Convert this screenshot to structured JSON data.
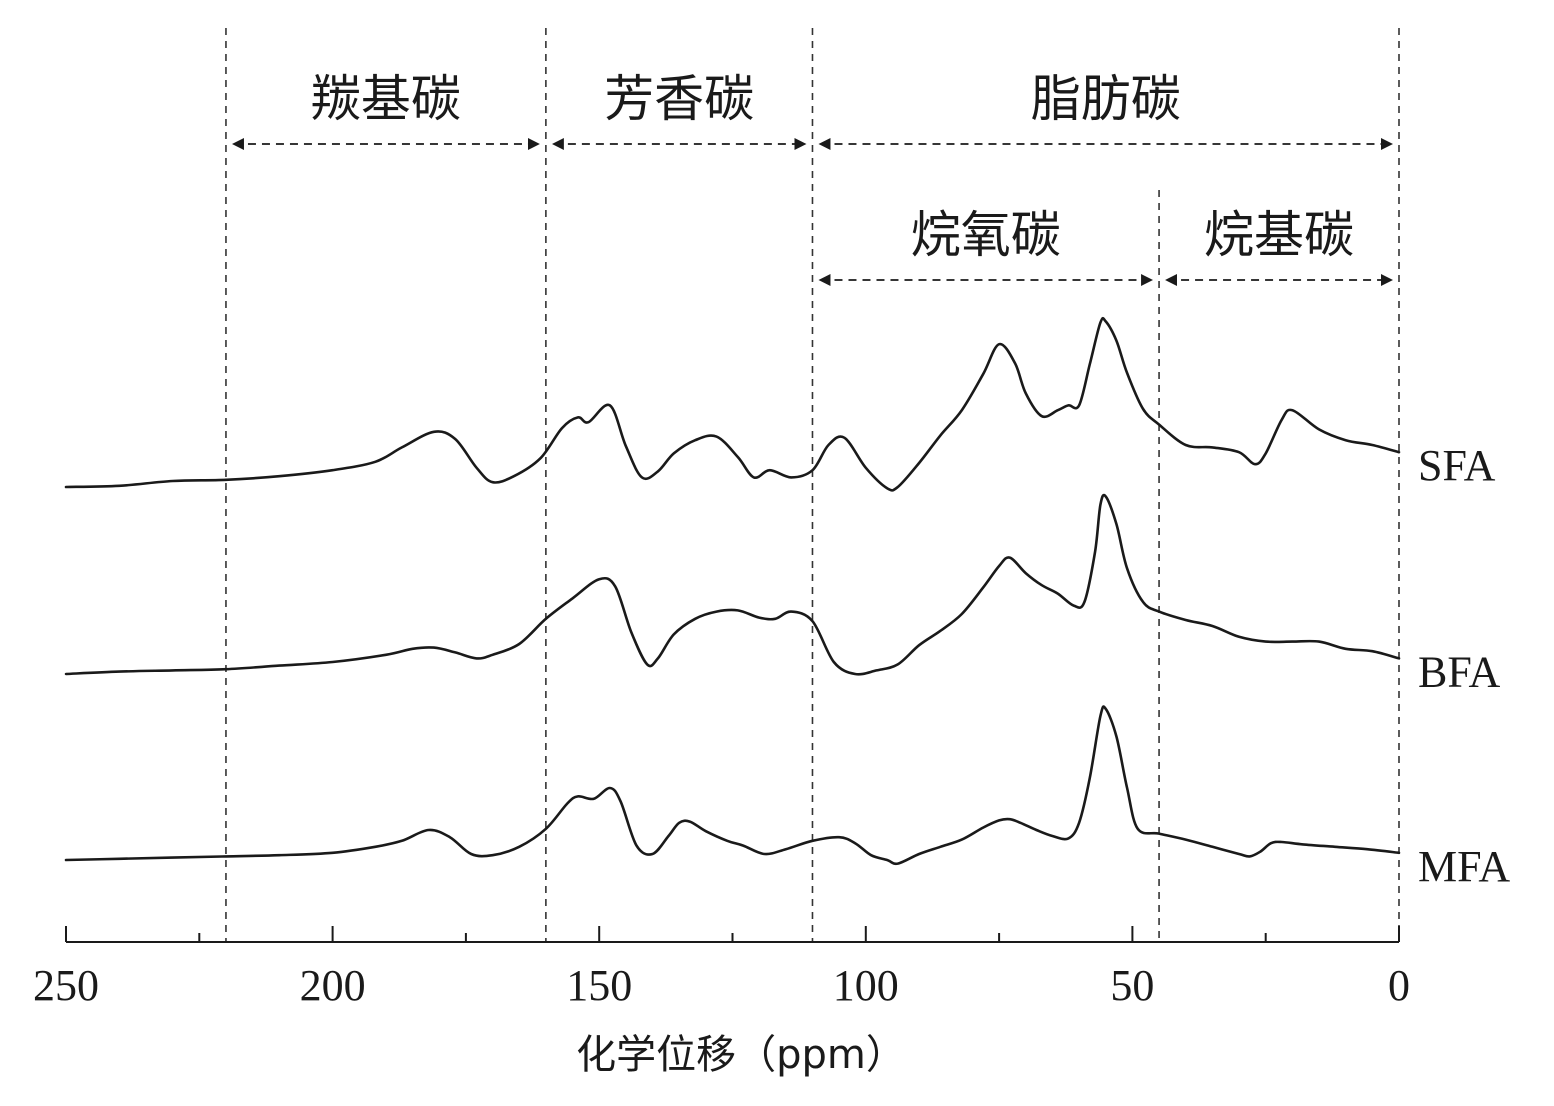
{
  "chart_data": {
    "type": "line",
    "xlabel": "化学位移（ppm）",
    "ylabel": "",
    "xlim": [
      250,
      0
    ],
    "x_reversed": true,
    "x_ticks": [
      250,
      200,
      150,
      100,
      50,
      0
    ],
    "x_tick_labels": [
      "250",
      "200",
      "150",
      "100",
      "50",
      "0"
    ],
    "grid": false,
    "legend": "series labels at right end of each trace",
    "region_boundaries": [
      220,
      160,
      110,
      45,
      0
    ],
    "regions": [
      {
        "label": "羰基碳",
        "from": 220,
        "to": 160,
        "row": 1
      },
      {
        "label": "芳香碳",
        "from": 160,
        "to": 110,
        "row": 1
      },
      {
        "label": "脂肪碳",
        "from": 110,
        "to": 0,
        "row": 1
      },
      {
        "label": "烷氧碳",
        "from": 110,
        "to": 45,
        "row": 2
      },
      {
        "label": "烷基碳",
        "from": 45,
        "to": 0,
        "row": 2
      }
    ],
    "series": [
      {
        "name": "SFA",
        "offset": 2,
        "x": [
          250,
          240,
          230,
          220,
          210,
          200,
          192,
          187,
          181,
          177,
          173,
          170,
          166,
          161,
          157,
          154,
          152,
          148,
          145,
          142,
          139,
          136,
          132,
          128,
          124,
          121,
          118,
          114,
          110,
          107,
          104,
          100,
          96,
          94,
          90,
          86,
          82,
          78,
          75,
          72,
          70,
          67,
          64,
          62,
          60,
          58,
          56,
          55,
          53,
          51,
          48,
          45,
          40,
          35,
          30,
          27,
          25,
          22,
          20,
          15,
          10,
          5,
          0
        ],
        "y": [
          0.0,
          0.01,
          0.05,
          0.06,
          0.09,
          0.14,
          0.21,
          0.33,
          0.46,
          0.4,
          0.16,
          0.04,
          0.09,
          0.24,
          0.49,
          0.58,
          0.54,
          0.68,
          0.34,
          0.08,
          0.13,
          0.28,
          0.39,
          0.42,
          0.25,
          0.08,
          0.14,
          0.08,
          0.14,
          0.35,
          0.41,
          0.16,
          -0.01,
          0.0,
          0.2,
          0.43,
          0.64,
          0.94,
          1.19,
          1.03,
          0.78,
          0.59,
          0.64,
          0.68,
          0.68,
          1.02,
          1.37,
          1.38,
          1.22,
          0.95,
          0.65,
          0.52,
          0.35,
          0.33,
          0.29,
          0.19,
          0.28,
          0.56,
          0.64,
          0.48,
          0.39,
          0.35,
          0.29
        ]
      },
      {
        "name": "BFA",
        "offset": 1,
        "x": [
          250,
          240,
          230,
          220,
          210,
          200,
          190,
          185,
          181,
          177,
          173,
          170,
          165,
          160,
          155,
          150,
          147,
          144,
          141,
          139,
          136,
          132,
          128,
          124,
          120,
          117,
          114,
          110,
          106,
          102,
          98,
          94,
          90,
          86,
          82,
          78,
          75,
          73,
          70,
          67,
          64,
          61,
          59,
          57,
          56,
          55,
          53,
          51,
          48,
          45,
          40,
          35,
          30,
          25,
          20,
          15,
          10,
          5,
          0
        ],
        "y": [
          0.0,
          0.02,
          0.03,
          0.04,
          0.07,
          0.1,
          0.16,
          0.21,
          0.22,
          0.18,
          0.13,
          0.16,
          0.25,
          0.46,
          0.63,
          0.79,
          0.73,
          0.35,
          0.08,
          0.13,
          0.33,
          0.46,
          0.52,
          0.53,
          0.47,
          0.46,
          0.52,
          0.44,
          0.1,
          0.0,
          0.03,
          0.08,
          0.24,
          0.36,
          0.5,
          0.72,
          0.9,
          0.97,
          0.84,
          0.74,
          0.67,
          0.57,
          0.6,
          1.02,
          1.41,
          1.48,
          1.25,
          0.88,
          0.6,
          0.52,
          0.45,
          0.4,
          0.31,
          0.27,
          0.27,
          0.27,
          0.21,
          0.19,
          0.13
        ]
      },
      {
        "name": "MFA",
        "offset": 0,
        "x": [
          250,
          240,
          230,
          220,
          210,
          200,
          192,
          187,
          182,
          178,
          174,
          170,
          165,
          160,
          156,
          154,
          151,
          148,
          146,
          143,
          140,
          137,
          135,
          133,
          130,
          126,
          123,
          119,
          115,
          110,
          105,
          102,
          99,
          96,
          94,
          90,
          86,
          82,
          78,
          75,
          73,
          71,
          68,
          65,
          62,
          60,
          58,
          56,
          55,
          53,
          51,
          49,
          45,
          40,
          35,
          30,
          28,
          26,
          24,
          22,
          18,
          12,
          6,
          0
        ],
        "y": [
          0.0,
          0.01,
          0.02,
          0.03,
          0.04,
          0.06,
          0.11,
          0.16,
          0.25,
          0.19,
          0.05,
          0.04,
          0.11,
          0.26,
          0.47,
          0.53,
          0.51,
          0.6,
          0.49,
          0.12,
          0.05,
          0.2,
          0.31,
          0.32,
          0.24,
          0.16,
          0.12,
          0.05,
          0.09,
          0.16,
          0.19,
          0.14,
          0.04,
          0.0,
          -0.03,
          0.05,
          0.11,
          0.17,
          0.27,
          0.33,
          0.34,
          0.31,
          0.25,
          0.2,
          0.18,
          0.31,
          0.68,
          1.2,
          1.26,
          1.03,
          0.6,
          0.26,
          0.22,
          0.17,
          0.11,
          0.05,
          0.03,
          0.07,
          0.14,
          0.15,
          0.13,
          0.11,
          0.09,
          0.06
        ]
      }
    ]
  }
}
